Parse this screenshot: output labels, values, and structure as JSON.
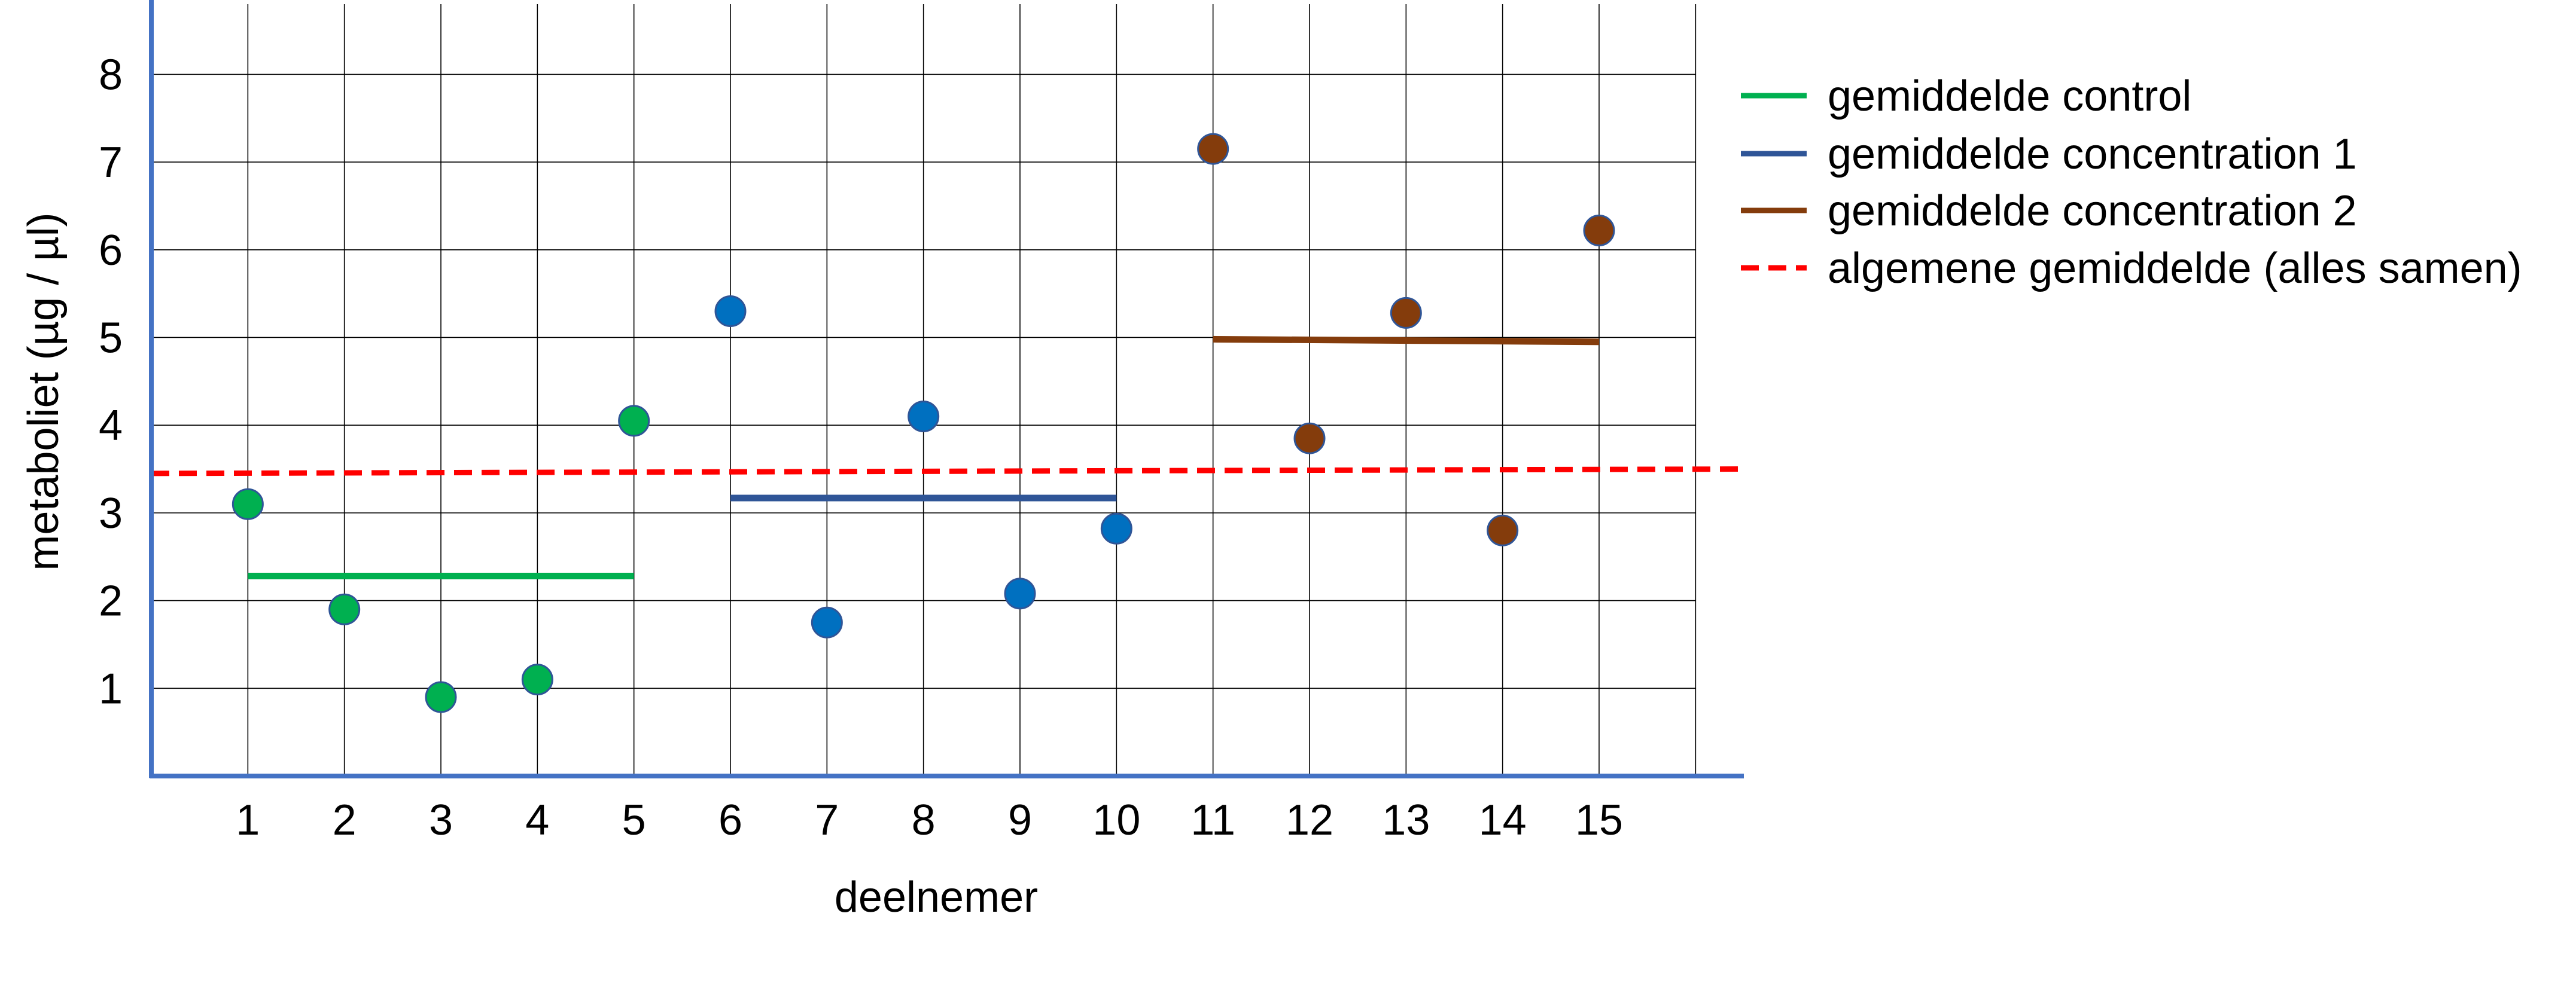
{
  "chart_data": {
    "type": "scatter",
    "title": "",
    "xlabel": "deelnemer",
    "ylabel": "metaboliet (µg / µl)",
    "xlim": [
      0,
      16.5
    ],
    "ylim": [
      0,
      8.8
    ],
    "grid": true,
    "legend_position": "right",
    "x_ticks": [
      "1",
      "2",
      "3",
      "4",
      "5",
      "6",
      "7",
      "8",
      "9",
      "10",
      "11",
      "12",
      "13",
      "14",
      "15"
    ],
    "y_ticks": [
      "1",
      "2",
      "3",
      "4",
      "5",
      "6",
      "7",
      "8"
    ],
    "series": [
      {
        "name": "control",
        "color": "#00b050",
        "x": [
          1,
          2,
          3,
          4,
          5
        ],
        "values": [
          3.1,
          1.9,
          0.9,
          1.1,
          4.05
        ]
      },
      {
        "name": "concentration 1",
        "color": "#0070c0",
        "x": [
          6,
          7,
          8,
          9,
          10
        ],
        "values": [
          5.3,
          1.75,
          4.1,
          2.08,
          2.82
        ]
      },
      {
        "name": "concentration 2",
        "color": "#843c0c",
        "x": [
          11,
          12,
          13,
          14,
          15
        ],
        "values": [
          7.15,
          3.85,
          5.28,
          2.8,
          6.22
        ]
      }
    ],
    "mean_lines": [
      {
        "name": "gemiddelde control",
        "color": "#00b050",
        "x_start": 1,
        "x_end": 5,
        "y_start": 2.28,
        "y_end": 2.28,
        "dashed": false
      },
      {
        "name": "gemiddelde concentration 1",
        "color": "#2f5597",
        "x_start": 6,
        "x_end": 10,
        "y_start": 3.17,
        "y_end": 3.17,
        "dashed": false
      },
      {
        "name": "gemiddelde concentration 2",
        "color": "#843c0c",
        "x_start": 11,
        "x_end": 15,
        "y_start": 4.98,
        "y_end": 4.95,
        "dashed": false
      },
      {
        "name": "algemene gemiddelde (alles samen)",
        "color": "#ff0000",
        "x_start": 0,
        "x_end": 16.5,
        "y_start": 3.45,
        "y_end": 3.5,
        "dashed": true
      }
    ],
    "legend": [
      "gemiddelde control",
      "gemiddelde concentration 1",
      "gemiddelde concentration 2",
      "algemene gemiddelde (alles samen)"
    ],
    "axis_color": "#4472c4",
    "marker_edge_color": "#2f5597",
    "grid_color": "#000000"
  }
}
